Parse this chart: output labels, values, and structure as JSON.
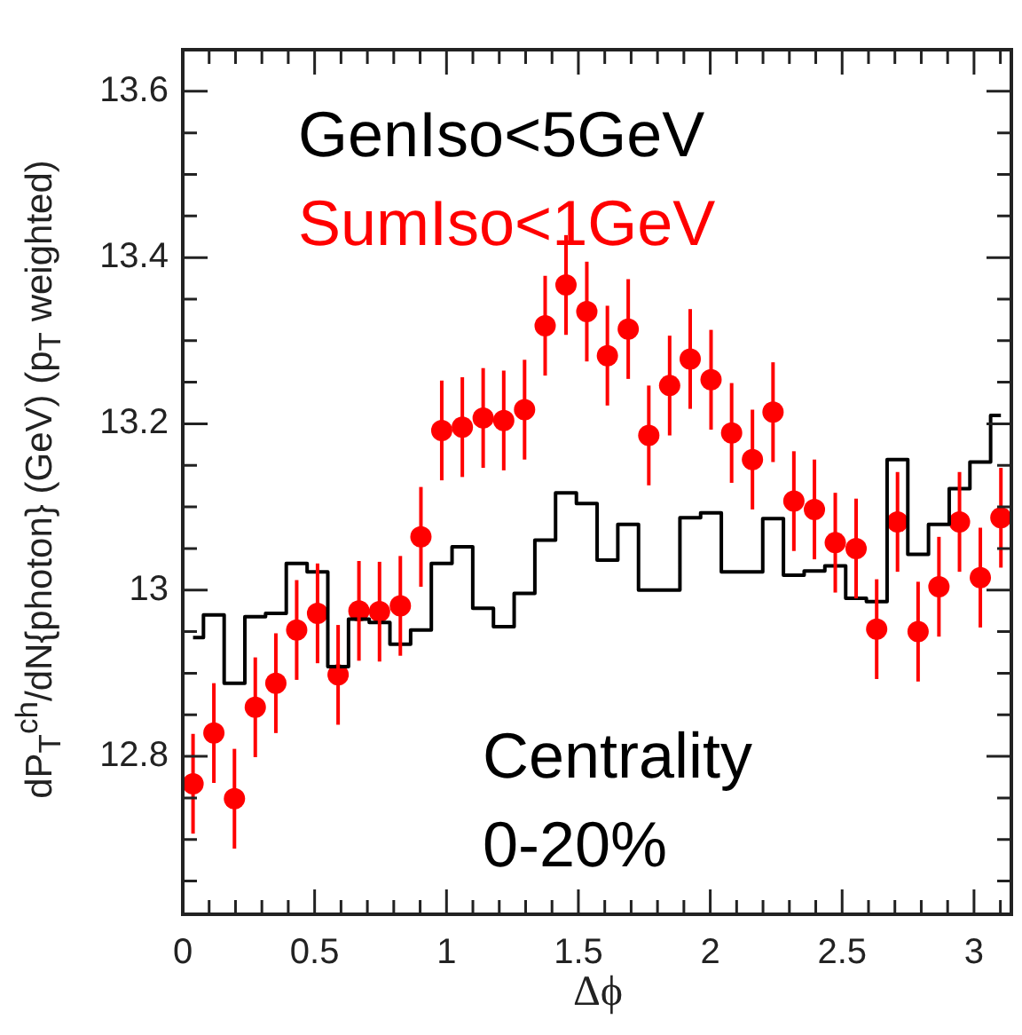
{
  "chart_data": {
    "type": "scatter",
    "xlabel": "Δϕ",
    "ylabel": "dP$_{T}$$^{ch}$/dN{photon} (GeV) (p$_{T}$ weighted)",
    "x": [
      0.039,
      0.118,
      0.196,
      0.275,
      0.353,
      0.432,
      0.511,
      0.589,
      0.668,
      0.746,
      0.825,
      0.903,
      0.982,
      1.06,
      1.139,
      1.217,
      1.296,
      1.374,
      1.453,
      1.532,
      1.61,
      1.689,
      1.767,
      1.846,
      1.924,
      2.003,
      2.081,
      2.16,
      2.238,
      2.317,
      2.395,
      2.474,
      2.553,
      2.631,
      2.71,
      2.788,
      2.867,
      2.945,
      3.024,
      3.102
    ],
    "series": [
      {
        "name": "GenIso<5GeV",
        "type": "step",
        "color": "#000000",
        "marker": "none",
        "values": [
          12.943,
          12.97,
          12.888,
          12.968,
          12.972,
          13.032,
          13.022,
          12.908,
          12.965,
          12.961,
          12.935,
          12.952,
          13.032,
          13.052,
          12.978,
          12.956,
          12.996,
          13.06,
          13.117,
          13.104,
          13.036,
          13.079,
          13.0,
          13.0,
          13.087,
          13.093,
          13.022,
          13.022,
          13.086,
          13.018,
          13.023,
          13.029,
          12.99,
          12.986,
          13.157,
          13.043,
          13.079,
          13.122,
          13.154,
          13.21
        ]
      },
      {
        "name": "SumIso<1GeV",
        "type": "scatter",
        "color": "#ff0000",
        "marker": "circle",
        "values": [
          12.767,
          12.828,
          12.749,
          12.859,
          12.888,
          12.952,
          12.972,
          12.898,
          12.975,
          12.974,
          12.981,
          13.064,
          13.192,
          13.196,
          13.207,
          13.204,
          13.217,
          13.318,
          13.367,
          13.335,
          13.282,
          13.314,
          13.186,
          13.246,
          13.278,
          13.253,
          13.189,
          13.157,
          13.214,
          13.107,
          13.097,
          13.057,
          13.05,
          12.953,
          13.082,
          12.95,
          13.004,
          13.082,
          13.015,
          13.087
        ],
        "errors": [
          0.06,
          0.06,
          0.06,
          0.06,
          0.06,
          0.06,
          0.06,
          0.06,
          0.06,
          0.06,
          0.06,
          0.06,
          0.06,
          0.06,
          0.06,
          0.06,
          0.06,
          0.06,
          0.06,
          0.06,
          0.06,
          0.06,
          0.06,
          0.06,
          0.06,
          0.06,
          0.06,
          0.06,
          0.06,
          0.06,
          0.06,
          0.06,
          0.06,
          0.06,
          0.06,
          0.06,
          0.06,
          0.06,
          0.06,
          0.06
        ]
      }
    ],
    "xlim": [
      0,
      3.1416
    ],
    "xticks": [
      0,
      {
        "value": 0.1,
        "label": null
      },
      {
        "value": 0.2,
        "label": null
      },
      {
        "value": 0.3,
        "label": null
      },
      {
        "value": 0.4,
        "label": null
      },
      0.5,
      {
        "value": 0.6,
        "label": null
      },
      {
        "value": 0.7,
        "label": null
      },
      {
        "value": 0.8,
        "label": null
      },
      {
        "value": 0.9,
        "label": null
      },
      1,
      {
        "value": 1.1,
        "label": null
      },
      {
        "value": 1.2,
        "label": null
      },
      {
        "value": 1.3,
        "label": null
      },
      {
        "value": 1.4,
        "label": null
      },
      1.5,
      {
        "value": 1.6,
        "label": null
      },
      {
        "value": 1.7,
        "label": null
      },
      {
        "value": 1.8,
        "label": null
      },
      {
        "value": 1.9,
        "label": null
      },
      2,
      {
        "value": 2.1,
        "label": null
      },
      {
        "value": 2.2,
        "label": null
      },
      {
        "value": 2.3,
        "label": null
      },
      {
        "value": 2.4,
        "label": null
      },
      2.5,
      {
        "value": 2.6,
        "label": null
      },
      {
        "value": 2.7,
        "label": null
      },
      {
        "value": 2.8,
        "label": null
      },
      {
        "value": 2.9,
        "label": null
      },
      3,
      {
        "value": 3.1,
        "label": null
      }
    ],
    "ylim": [
      12.61,
      13.65
    ],
    "yticks": [
      {
        "value": 12.65,
        "label": null
      },
      {
        "value": 12.7,
        "label": null
      },
      {
        "value": 12.75,
        "label": null
      },
      12.8,
      {
        "value": 12.85,
        "label": null
      },
      {
        "value": 12.9,
        "label": null
      },
      {
        "value": 12.95,
        "label": null
      },
      13,
      {
        "value": 13.05,
        "label": null
      },
      {
        "value": 13.1,
        "label": null
      },
      {
        "value": 13.15,
        "label": null
      },
      13.2,
      {
        "value": 13.25,
        "label": null
      },
      {
        "value": 13.3,
        "label": null
      },
      {
        "value": 13.35,
        "label": null
      },
      13.4,
      {
        "value": 13.45,
        "label": null
      },
      {
        "value": 13.5,
        "label": null
      },
      {
        "value": 13.55,
        "label": null
      },
      13.6
    ],
    "annotations": [
      "Centrality",
      "0-20%"
    ],
    "grid": false,
    "legend": false
  }
}
